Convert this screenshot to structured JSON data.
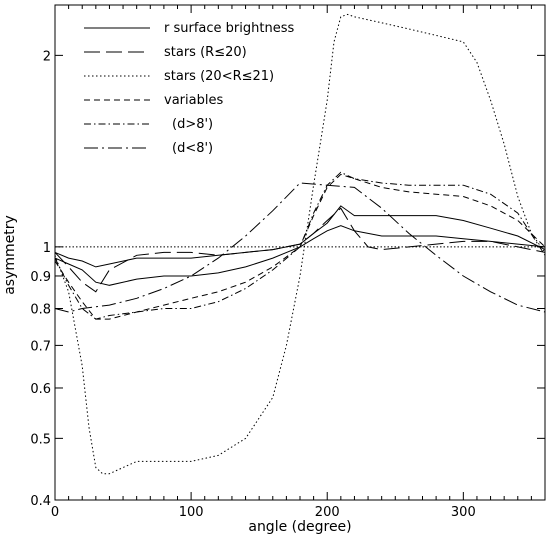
{
  "chart_data": {
    "type": "line",
    "xlabel": "angle (degree)",
    "ylabel": "asymmetry",
    "xlim": [
      0,
      360
    ],
    "ylim": [
      0.4,
      2.4
    ],
    "y_scale": "log",
    "x_ticks": [
      0,
      100,
      200,
      300
    ],
    "y_ticks": [
      0.4,
      0.5,
      0.6,
      0.7,
      0.8,
      0.9,
      1,
      2
    ],
    "reference_line": 1,
    "grid": false,
    "legend_position": "top-left",
    "series": [
      {
        "name": "r surface brightness",
        "style": "solid",
        "x": [
          0,
          10,
          20,
          30,
          40,
          60,
          80,
          100,
          120,
          140,
          160,
          180,
          190,
          200,
          210,
          220,
          240,
          260,
          280,
          300,
          320,
          340,
          360
        ],
        "y": [
          0.96,
          0.94,
          0.92,
          0.88,
          0.87,
          0.89,
          0.9,
          0.9,
          0.91,
          0.93,
          0.96,
          1.0,
          1.03,
          1.06,
          1.08,
          1.06,
          1.04,
          1.04,
          1.04,
          1.03,
          1.02,
          1.01,
          1.0
        ]
      },
      {
        "name": "r surface brightness",
        "style": "solid",
        "x": [
          0,
          10,
          20,
          30,
          40,
          60,
          80,
          100,
          120,
          140,
          160,
          180,
          190,
          200,
          210,
          220,
          240,
          260,
          280,
          300,
          320,
          340,
          360
        ],
        "y": [
          0.98,
          0.96,
          0.95,
          0.93,
          0.94,
          0.96,
          0.96,
          0.96,
          0.97,
          0.98,
          0.99,
          1.01,
          1.05,
          1.09,
          1.16,
          1.12,
          1.12,
          1.12,
          1.12,
          1.1,
          1.07,
          1.04,
          0.99
        ]
      },
      {
        "name": "stars (R≤20)",
        "style": "longdash",
        "x": [
          0,
          10,
          20,
          30,
          40,
          60,
          80,
          100,
          120,
          140,
          160,
          180,
          190,
          200,
          210,
          220,
          230,
          240,
          260,
          280,
          300,
          320,
          340,
          360
        ],
        "y": [
          0.98,
          0.93,
          0.88,
          0.85,
          0.92,
          0.97,
          0.98,
          0.98,
          0.97,
          0.98,
          0.99,
          1.01,
          1.05,
          1.1,
          1.15,
          1.06,
          1.0,
          0.99,
          1.0,
          1.01,
          1.02,
          1.02,
          1.0,
          0.98
        ]
      },
      {
        "name": "stars (20<R≤21)",
        "style": "dotted",
        "x": [
          0,
          10,
          20,
          25,
          30,
          35,
          40,
          60,
          80,
          100,
          120,
          140,
          160,
          170,
          180,
          190,
          200,
          205,
          210,
          215,
          220,
          240,
          260,
          280,
          300,
          310,
          320,
          330,
          340,
          350,
          360
        ],
        "y": [
          0.97,
          0.85,
          0.65,
          0.52,
          0.45,
          0.44,
          0.44,
          0.46,
          0.46,
          0.46,
          0.47,
          0.5,
          0.58,
          0.7,
          0.9,
          1.25,
          1.7,
          2.1,
          2.3,
          2.32,
          2.3,
          2.25,
          2.2,
          2.15,
          2.1,
          1.95,
          1.7,
          1.45,
          1.2,
          1.05,
          0.98
        ]
      },
      {
        "name": "variables",
        "style": "shortdash",
        "x": [
          0,
          10,
          20,
          30,
          40,
          60,
          80,
          100,
          120,
          140,
          160,
          180,
          190,
          200,
          210,
          220,
          240,
          260,
          280,
          300,
          320,
          340,
          360
        ],
        "y": [
          0.95,
          0.88,
          0.82,
          0.77,
          0.77,
          0.79,
          0.81,
          0.83,
          0.85,
          0.88,
          0.93,
          1.0,
          1.12,
          1.24,
          1.3,
          1.28,
          1.24,
          1.22,
          1.21,
          1.2,
          1.16,
          1.1,
          1.0
        ]
      },
      {
        "name": "(d>8')",
        "style": "dashdot",
        "x": [
          0,
          10,
          20,
          30,
          40,
          60,
          80,
          100,
          120,
          140,
          160,
          180,
          190,
          200,
          210,
          220,
          240,
          260,
          280,
          300,
          320,
          340,
          360
        ],
        "y": [
          0.96,
          0.87,
          0.8,
          0.77,
          0.78,
          0.79,
          0.8,
          0.8,
          0.82,
          0.86,
          0.92,
          1.0,
          1.13,
          1.25,
          1.31,
          1.28,
          1.26,
          1.25,
          1.25,
          1.25,
          1.21,
          1.13,
          0.97
        ]
      },
      {
        "name": "(d<8')",
        "style": "longdashdot",
        "x": [
          0,
          10,
          20,
          40,
          60,
          80,
          100,
          120,
          140,
          160,
          180,
          200,
          220,
          240,
          260,
          280,
          300,
          320,
          340,
          360
        ],
        "y": [
          0.8,
          0.79,
          0.8,
          0.81,
          0.83,
          0.86,
          0.9,
          0.96,
          1.04,
          1.14,
          1.26,
          1.25,
          1.24,
          1.15,
          1.05,
          0.97,
          0.9,
          0.85,
          0.81,
          0.79
        ]
      }
    ]
  }
}
